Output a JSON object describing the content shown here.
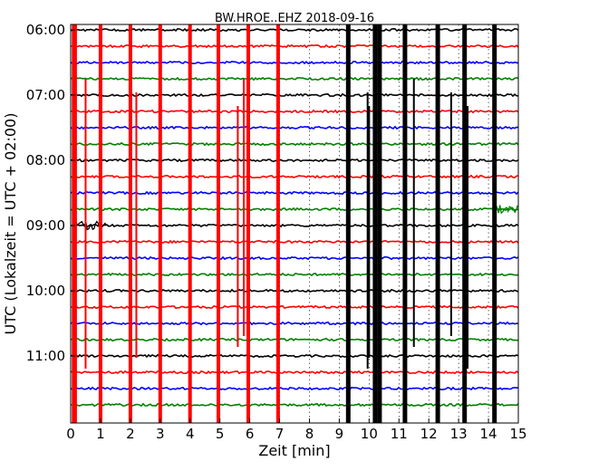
{
  "chart_data": {
    "type": "line",
    "title": "BW.HROE..EHZ 2018-09-16",
    "xlabel": "Zeit  [min]",
    "ylabel": "UTC (Lokalzeit = UTC + 02:00)",
    "xlim": [
      0,
      15
    ],
    "x_ticks": [
      "0",
      "1",
      "2",
      "3",
      "4",
      "5",
      "6",
      "7",
      "8",
      "9",
      "10",
      "11",
      "12",
      "13",
      "14",
      "15"
    ],
    "y_ticks": [
      "06:00",
      "07:00",
      "08:00",
      "09:00",
      "10:00",
      "11:00"
    ],
    "grid": "vertical dotted",
    "trace_interval_min": 15,
    "series": [
      {
        "start": "06:00",
        "color": "#000000"
      },
      {
        "start": "06:15",
        "color": "#ff0000"
      },
      {
        "start": "06:30",
        "color": "#0000ff"
      },
      {
        "start": "06:45",
        "color": "#008000"
      },
      {
        "start": "07:00",
        "color": "#000000"
      },
      {
        "start": "07:15",
        "color": "#ff0000"
      },
      {
        "start": "07:30",
        "color": "#0000ff"
      },
      {
        "start": "07:45",
        "color": "#008000"
      },
      {
        "start": "08:00",
        "color": "#000000"
      },
      {
        "start": "08:15",
        "color": "#ff0000"
      },
      {
        "start": "08:30",
        "color": "#0000ff"
      },
      {
        "start": "08:45",
        "color": "#008000"
      },
      {
        "start": "09:00",
        "color": "#000000"
      },
      {
        "start": "09:15",
        "color": "#ff0000"
      },
      {
        "start": "09:30",
        "color": "#0000ff"
      },
      {
        "start": "09:45",
        "color": "#008000"
      },
      {
        "start": "10:00",
        "color": "#000000"
      },
      {
        "start": "10:15",
        "color": "#ff0000"
      },
      {
        "start": "10:30",
        "color": "#0000ff"
      },
      {
        "start": "10:45",
        "color": "#008000"
      },
      {
        "start": "11:00",
        "color": "#000000"
      },
      {
        "start": "11:15",
        "color": "#ff0000"
      },
      {
        "start": "11:30",
        "color": "#0000ff"
      },
      {
        "start": "11:45",
        "color": "#008000"
      }
    ],
    "red_bursts_min": [
      0.1,
      0.15,
      1.0,
      2.0,
      3.0,
      4.0,
      4.95,
      5.95,
      6.95
    ],
    "black_bursts_min": [
      9.3,
      10.2,
      10.35,
      11.2,
      12.3,
      13.2,
      14.2
    ],
    "thin_spikes_min": [
      0.5,
      2.2,
      5.6,
      5.8,
      9.95,
      10.0,
      11.5,
      12.75,
      13.3
    ],
    "noise_segments": [
      {
        "trace": "09:00",
        "from_min": 0.1,
        "to_min": 1.2
      },
      {
        "trace": "08:45",
        "from_min": 14.2,
        "to_min": 15.0
      }
    ]
  }
}
